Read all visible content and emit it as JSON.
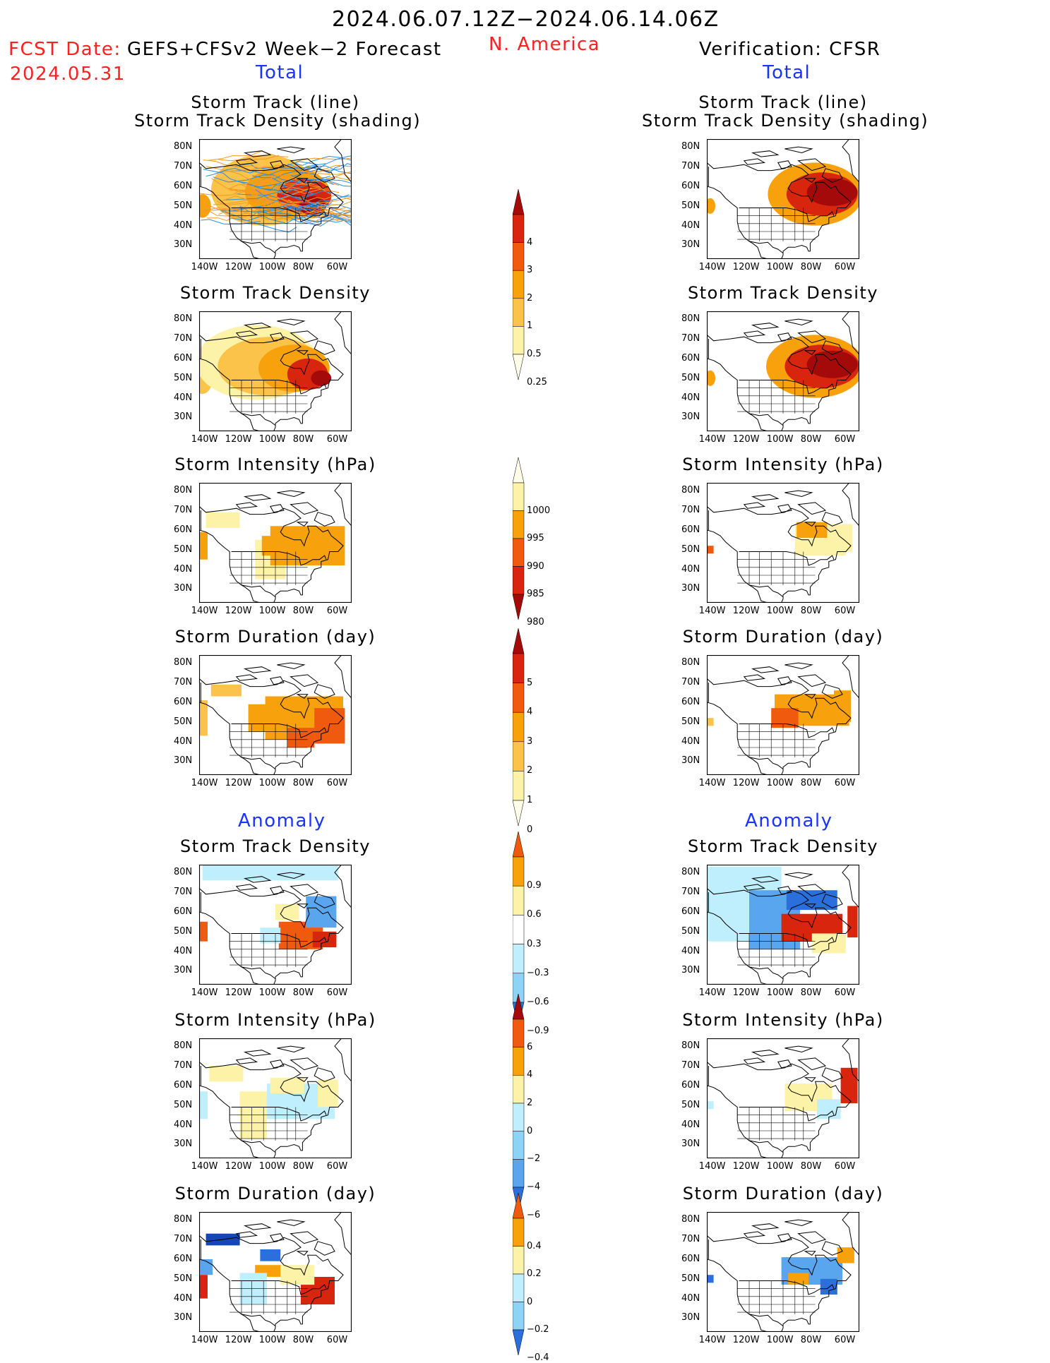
{
  "header": {
    "period": "2024.06.07.12Z−2024.06.14.06Z",
    "fcst_label": "FCST Date:",
    "fcst_date": "2024.05.31",
    "model": "GEFS+CFSv2 Week−2 Forecast",
    "region": "N. America",
    "verification": "Verification: CFSR",
    "total_left": "Total",
    "total_right": "Total",
    "anomaly_left": "Anomaly",
    "anomaly_right": "Anomaly"
  },
  "panel_titles": {
    "track_line": "Storm Track (line)",
    "track_shade": "Storm Track Density (shading)",
    "density": "Storm Track Density",
    "intensity": "Storm Intensity (hPa)",
    "duration": "Storm Duration (day)"
  },
  "axes": {
    "lat_labels": [
      "80N",
      "70N",
      "60N",
      "50N",
      "40N",
      "30N"
    ],
    "lon_labels": [
      "140W",
      "120W",
      "100W",
      "80W",
      "60W"
    ]
  },
  "colorbars": {
    "density_total": [
      "4",
      "3",
      "2",
      "1",
      "0.5",
      "0.25"
    ],
    "intensity_total": [
      "1000",
      "995",
      "990",
      "985",
      "980"
    ],
    "duration_total": [
      "5",
      "4",
      "3",
      "2",
      "1",
      "0"
    ],
    "density_anom": [
      "0.9",
      "0.6",
      "0.3",
      "−0.3",
      "−0.6",
      "−0.9"
    ],
    "intensity_anom": [
      "6",
      "4",
      "2",
      "0",
      "−2",
      "−4",
      "−6"
    ],
    "duration_anom": [
      "0.4",
      "0.2",
      "0",
      "−0.2",
      "−0.4"
    ]
  },
  "colors": {
    "dark_red": "#a50a0a",
    "red": "#d8260e",
    "orange_red": "#f05a0f",
    "orange": "#f7a10d",
    "light_orange": "#fbc34a",
    "pale_yellow": "#fdf3a8",
    "light_blue": "#bfeefc",
    "sky_blue": "#8cd3f5",
    "mid_blue": "#5aa6ee",
    "blue": "#2a6fdc",
    "dark_blue": "#1746b8",
    "track_orange": "#f29a23",
    "track_blue": "#2b8de6"
  }
}
